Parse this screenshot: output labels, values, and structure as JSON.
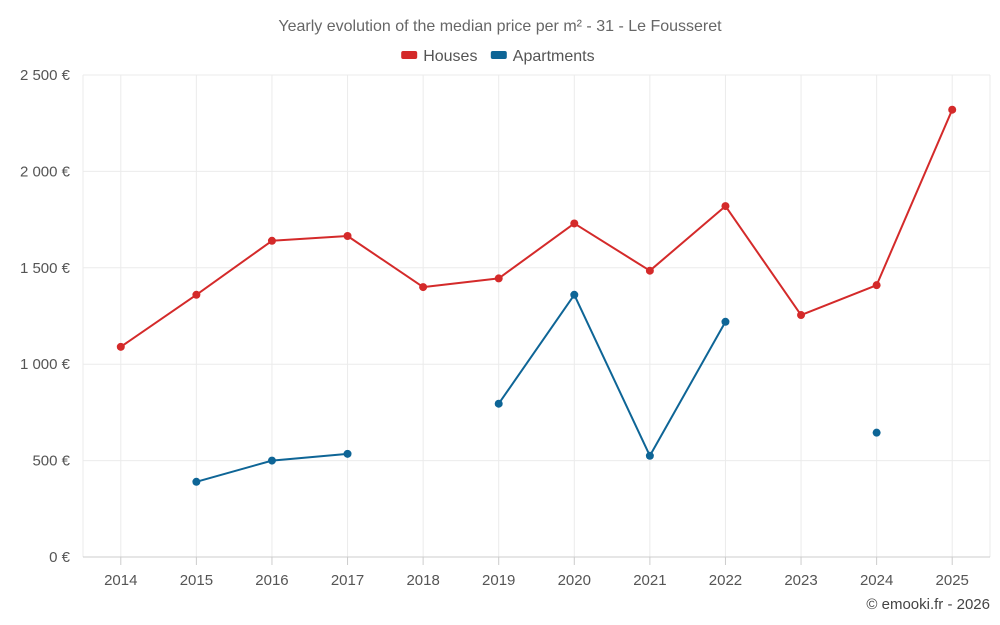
{
  "chart_data": {
    "type": "line",
    "title": "Yearly evolution of the median price per m² - 31 - Le Fousseret",
    "xlabel": "",
    "ylabel": "",
    "categories": [
      "2014",
      "2015",
      "2016",
      "2017",
      "2018",
      "2019",
      "2020",
      "2021",
      "2022",
      "2023",
      "2024",
      "2025"
    ],
    "ylim": [
      0,
      2500
    ],
    "yticks": [
      0,
      500,
      1000,
      1500,
      2000,
      2500
    ],
    "ytick_labels": [
      "0 €",
      "500 €",
      "1 000 €",
      "1 500 €",
      "2 000 €",
      "2 500 €"
    ],
    "grid": true,
    "legend_position": "top-center",
    "series": [
      {
        "name": "Houses",
        "color": "#d42a2a",
        "values": [
          1090,
          1360,
          1640,
          1665,
          1400,
          1445,
          1730,
          1485,
          1820,
          1255,
          1410,
          2320
        ]
      },
      {
        "name": "Apartments",
        "color": "#0e6596",
        "values": [
          null,
          390,
          500,
          535,
          null,
          795,
          1360,
          525,
          1220,
          null,
          645,
          null
        ]
      }
    ],
    "credit": "© emooki.fr - 2026"
  }
}
